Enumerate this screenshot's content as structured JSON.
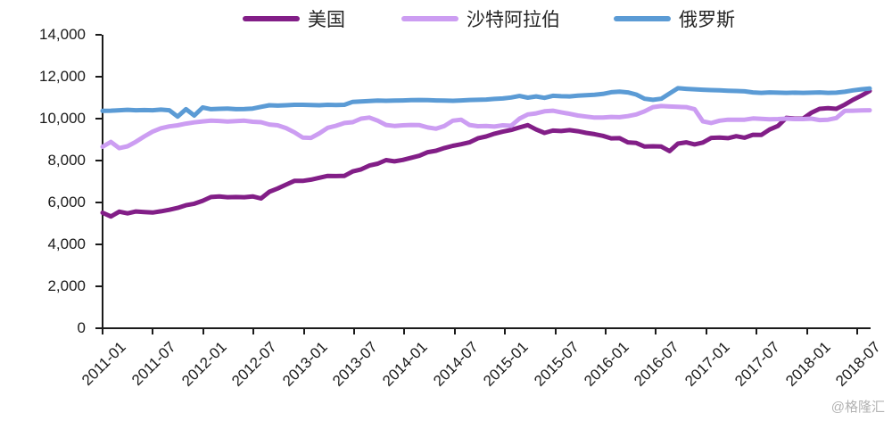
{
  "legend": {
    "items": [
      "美国",
      "沙特阿拉伯",
      "俄罗斯"
    ]
  },
  "y_axis": {
    "labels": [
      "14,000",
      "12,000",
      "10,000",
      "8,000",
      "6,000",
      "4,000",
      "2,000",
      "0"
    ]
  },
  "x_axis": {
    "labels": [
      "2011-01",
      "2011-07",
      "2012-01",
      "2012-07",
      "2013-01",
      "2013-07",
      "2014-01",
      "2014-07",
      "2015-01",
      "2015-07",
      "2016-01",
      "2016-07",
      "2017-01",
      "2017-07",
      "2018-01",
      "2018-07"
    ]
  },
  "watermark": "@格隆汇",
  "chart_data": {
    "type": "line",
    "title": "",
    "xlabel": "",
    "ylabel": "",
    "ylim": [
      0,
      14000
    ],
    "ytick_step": 2000,
    "grid": false,
    "legend_position": "top",
    "x_frequency": "monthly",
    "x_start": "2011-01",
    "x_end": "2018-09",
    "x_tick_labels": [
      "2011-01",
      "2011-07",
      "2012-01",
      "2012-07",
      "2013-01",
      "2013-07",
      "2014-01",
      "2014-07",
      "2015-01",
      "2015-07",
      "2016-01",
      "2016-07",
      "2017-01",
      "2017-07",
      "2018-01",
      "2018-07"
    ],
    "series": [
      {
        "key": "us",
        "name": "美国",
        "color": "#821E87",
        "values": [
          5510,
          5330,
          5560,
          5480,
          5570,
          5540,
          5520,
          5580,
          5650,
          5740,
          5870,
          5940,
          6080,
          6260,
          6290,
          6250,
          6260,
          6250,
          6290,
          6190,
          6510,
          6670,
          6850,
          7030,
          7030,
          7090,
          7180,
          7270,
          7260,
          7270,
          7480,
          7580,
          7760,
          7850,
          8020,
          7960,
          8030,
          8130,
          8230,
          8400,
          8470,
          8600,
          8700,
          8780,
          8870,
          9060,
          9150,
          9280,
          9380,
          9460,
          9580,
          9690,
          9480,
          9320,
          9430,
          9410,
          9450,
          9400,
          9320,
          9260,
          9180,
          9060,
          9070,
          8870,
          8840,
          8670,
          8680,
          8670,
          8450,
          8810,
          8870,
          8770,
          8860,
          9080,
          9100,
          9070,
          9160,
          9090,
          9230,
          9220,
          9480,
          9650,
          10040,
          10000,
          10000,
          10280,
          10470,
          10500,
          10470,
          10670,
          10900,
          11100,
          11320
        ]
      },
      {
        "key": "saudi",
        "name": "沙特阿拉伯",
        "color": "#CC9DF2",
        "values": [
          8660,
          8890,
          8590,
          8680,
          8900,
          9150,
          9380,
          9540,
          9630,
          9680,
          9760,
          9820,
          9870,
          9900,
          9890,
          9860,
          9880,
          9900,
          9850,
          9830,
          9720,
          9680,
          9550,
          9350,
          9100,
          9080,
          9300,
          9560,
          9660,
          9790,
          9830,
          10000,
          10050,
          9900,
          9700,
          9650,
          9680,
          9700,
          9690,
          9580,
          9520,
          9650,
          9900,
          9950,
          9700,
          9640,
          9650,
          9620,
          9680,
          9660,
          10000,
          10200,
          10250,
          10350,
          10380,
          10300,
          10230,
          10150,
          10100,
          10050,
          10050,
          10080,
          10070,
          10120,
          10200,
          10350,
          10550,
          10600,
          10580,
          10560,
          10550,
          10450,
          9870,
          9790,
          9900,
          9950,
          9950,
          9950,
          10010,
          9990,
          9970,
          9980,
          10000,
          9980,
          9980,
          10000,
          9930,
          9950,
          10030,
          10370,
          10380,
          10390,
          10400
        ]
      },
      {
        "key": "russia",
        "name": "俄罗斯",
        "color": "#5B9BD5",
        "values": [
          10370,
          10380,
          10400,
          10420,
          10400,
          10410,
          10400,
          10430,
          10400,
          10100,
          10450,
          10150,
          10530,
          10450,
          10470,
          10480,
          10450,
          10460,
          10480,
          10560,
          10640,
          10620,
          10640,
          10660,
          10660,
          10650,
          10640,
          10660,
          10650,
          10660,
          10800,
          10820,
          10840,
          10860,
          10850,
          10860,
          10870,
          10880,
          10890,
          10880,
          10870,
          10860,
          10850,
          10870,
          10890,
          10900,
          10910,
          10940,
          10960,
          11010,
          11080,
          11000,
          11060,
          10990,
          11090,
          11070,
          11060,
          11100,
          11120,
          11140,
          11180,
          11260,
          11290,
          11250,
          11150,
          10950,
          10900,
          10950,
          11200,
          11450,
          11420,
          11400,
          11380,
          11360,
          11350,
          11330,
          11320,
          11300,
          11250,
          11230,
          11250,
          11240,
          11230,
          11240,
          11230,
          11240,
          11250,
          11230,
          11240,
          11280,
          11350,
          11400,
          11440
        ]
      }
    ]
  }
}
